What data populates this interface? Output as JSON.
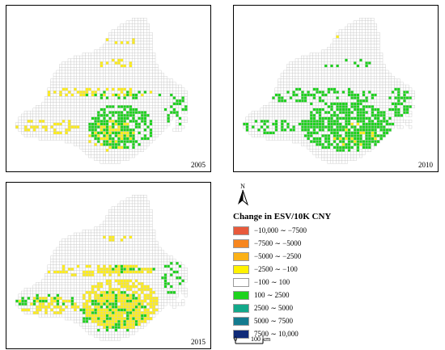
{
  "maps": [
    {
      "year": "2005",
      "colors": {
        "pos": "#1ed31e",
        "neg": "#ffee1a"
      }
    },
    {
      "year": "2010",
      "colors": {
        "pos": "#1ed31e",
        "neg": "#ffee1a"
      }
    },
    {
      "year": "2015",
      "colors": {
        "pos": "#1ed31e",
        "neg": "#ffee1a"
      }
    }
  ],
  "north_arrow": {
    "label": "N",
    "icon": "north-arrow-icon"
  },
  "legend": {
    "title": "Change in ESV/10K CNY",
    "items": [
      {
        "label": "−10,000 ∼ −7500",
        "color": "#e85a3c"
      },
      {
        "label": "−7500 ∼ −5000",
        "color": "#f7861e"
      },
      {
        "label": "−5000 ∼ −2500",
        "color": "#fbb117"
      },
      {
        "label": "−2500 ∼ −100",
        "color": "#fff200"
      },
      {
        "label": "−100 ∼ 100",
        "color": "#ffffff"
      },
      {
        "label": "100 ∼ 2500",
        "color": "#1ed31e"
      },
      {
        "label": "2500 ∼ 5000",
        "color": "#12a98a"
      },
      {
        "label": "5000 ∼ 7500",
        "color": "#137b8f"
      },
      {
        "label": "7500 ∼ 10,000",
        "color": "#0f2a78"
      }
    ]
  },
  "scale": {
    "zero": "0",
    "label": "100 km"
  }
}
